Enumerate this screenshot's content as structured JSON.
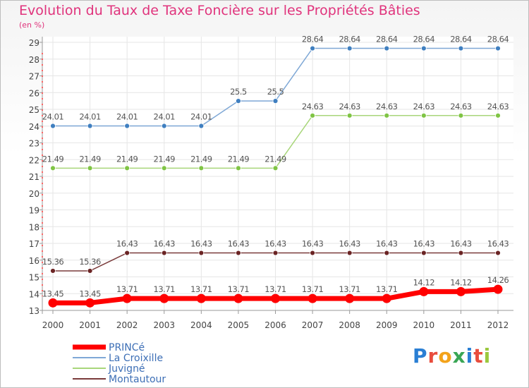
{
  "title": "Evolution du Taux de Taxe Foncière sur les Propriétés Bâties",
  "unit_label": "(en %)",
  "logo": {
    "text": "Proxiti",
    "letters": [
      {
        "ch": "P",
        "color": "#2a7fd4"
      },
      {
        "ch": "r",
        "color": "#e84c3d"
      },
      {
        "ch": "o",
        "color": "#f3a31b"
      },
      {
        "ch": "x",
        "color": "#3aa655"
      },
      {
        "ch": "i",
        "color": "#2a7fd4"
      },
      {
        "ch": "t",
        "color": "#e84c3d"
      },
      {
        "ch": "i",
        "color": "#9bc83e"
      }
    ]
  },
  "chart_data": {
    "type": "line",
    "title": "Evolution du Taux de Taxe Foncière sur les Propriétés Bâties",
    "ylabel": "(en %)",
    "xlabel": "",
    "x": [
      "2000",
      "2001",
      "2002",
      "2003",
      "2004",
      "2005",
      "2006",
      "2007",
      "2008",
      "2009",
      "2010",
      "2011",
      "2012"
    ],
    "ylim": [
      13,
      29
    ],
    "yticks": [
      "13",
      "14",
      "15",
      "16",
      "17",
      "18",
      "19",
      "20",
      "21",
      "22",
      "23",
      "24",
      "25",
      "26",
      "27",
      "28",
      "29"
    ],
    "grid": true,
    "legend_position": "bottom-left",
    "series": [
      {
        "name": "PRINCé",
        "color": "#ff0000",
        "point_color": "#ff0000",
        "width": 7,
        "values": [
          13.45,
          13.45,
          13.71,
          13.71,
          13.71,
          13.71,
          13.71,
          13.71,
          13.71,
          13.71,
          14.12,
          14.12,
          14.26
        ],
        "labels": [
          "13.45",
          "13.45",
          "13.71",
          "13.71",
          "13.71",
          "13.71",
          "13.71",
          "13.71",
          "13.71",
          "13.71",
          "14.12",
          "14.12",
          "14.26"
        ]
      },
      {
        "name": "La Croixille",
        "color": "#7fa8d6",
        "point_color": "#3f7fc0",
        "width": 1.5,
        "values": [
          24.01,
          24.01,
          24.01,
          24.01,
          24.01,
          25.5,
          25.5,
          28.64,
          28.64,
          28.64,
          28.64,
          28.64,
          28.64
        ],
        "labels": [
          "24.01",
          "24.01",
          "24.01",
          "24.01",
          "24.01",
          "25.5",
          "25.5",
          "28.64",
          "28.64",
          "28.64",
          "28.64",
          "28.64",
          "28.64"
        ]
      },
      {
        "name": "Juvigné",
        "color": "#a8d67a",
        "point_color": "#7fc444",
        "width": 1.5,
        "values": [
          21.49,
          21.49,
          21.49,
          21.49,
          21.49,
          21.49,
          21.49,
          24.63,
          24.63,
          24.63,
          24.63,
          24.63,
          24.63
        ],
        "labels": [
          "21.49",
          "21.49",
          "21.49",
          "21.49",
          "21.49",
          "21.49",
          "21.49",
          "24.63",
          "24.63",
          "24.63",
          "24.63",
          "24.63",
          "24.63"
        ]
      },
      {
        "name": "Montautour",
        "color": "#7a3b3b",
        "point_color": "#6b2424",
        "width": 1.5,
        "values": [
          15.36,
          15.36,
          16.43,
          16.43,
          16.43,
          16.43,
          16.43,
          16.43,
          16.43,
          16.43,
          16.43,
          16.43,
          16.43
        ],
        "labels": [
          "15.36",
          "15.36",
          "16.43",
          "16.43",
          "16.43",
          "16.43",
          "16.43",
          "16.43",
          "16.43",
          "16.43",
          "16.43",
          "16.43",
          "16.43"
        ]
      }
    ]
  }
}
